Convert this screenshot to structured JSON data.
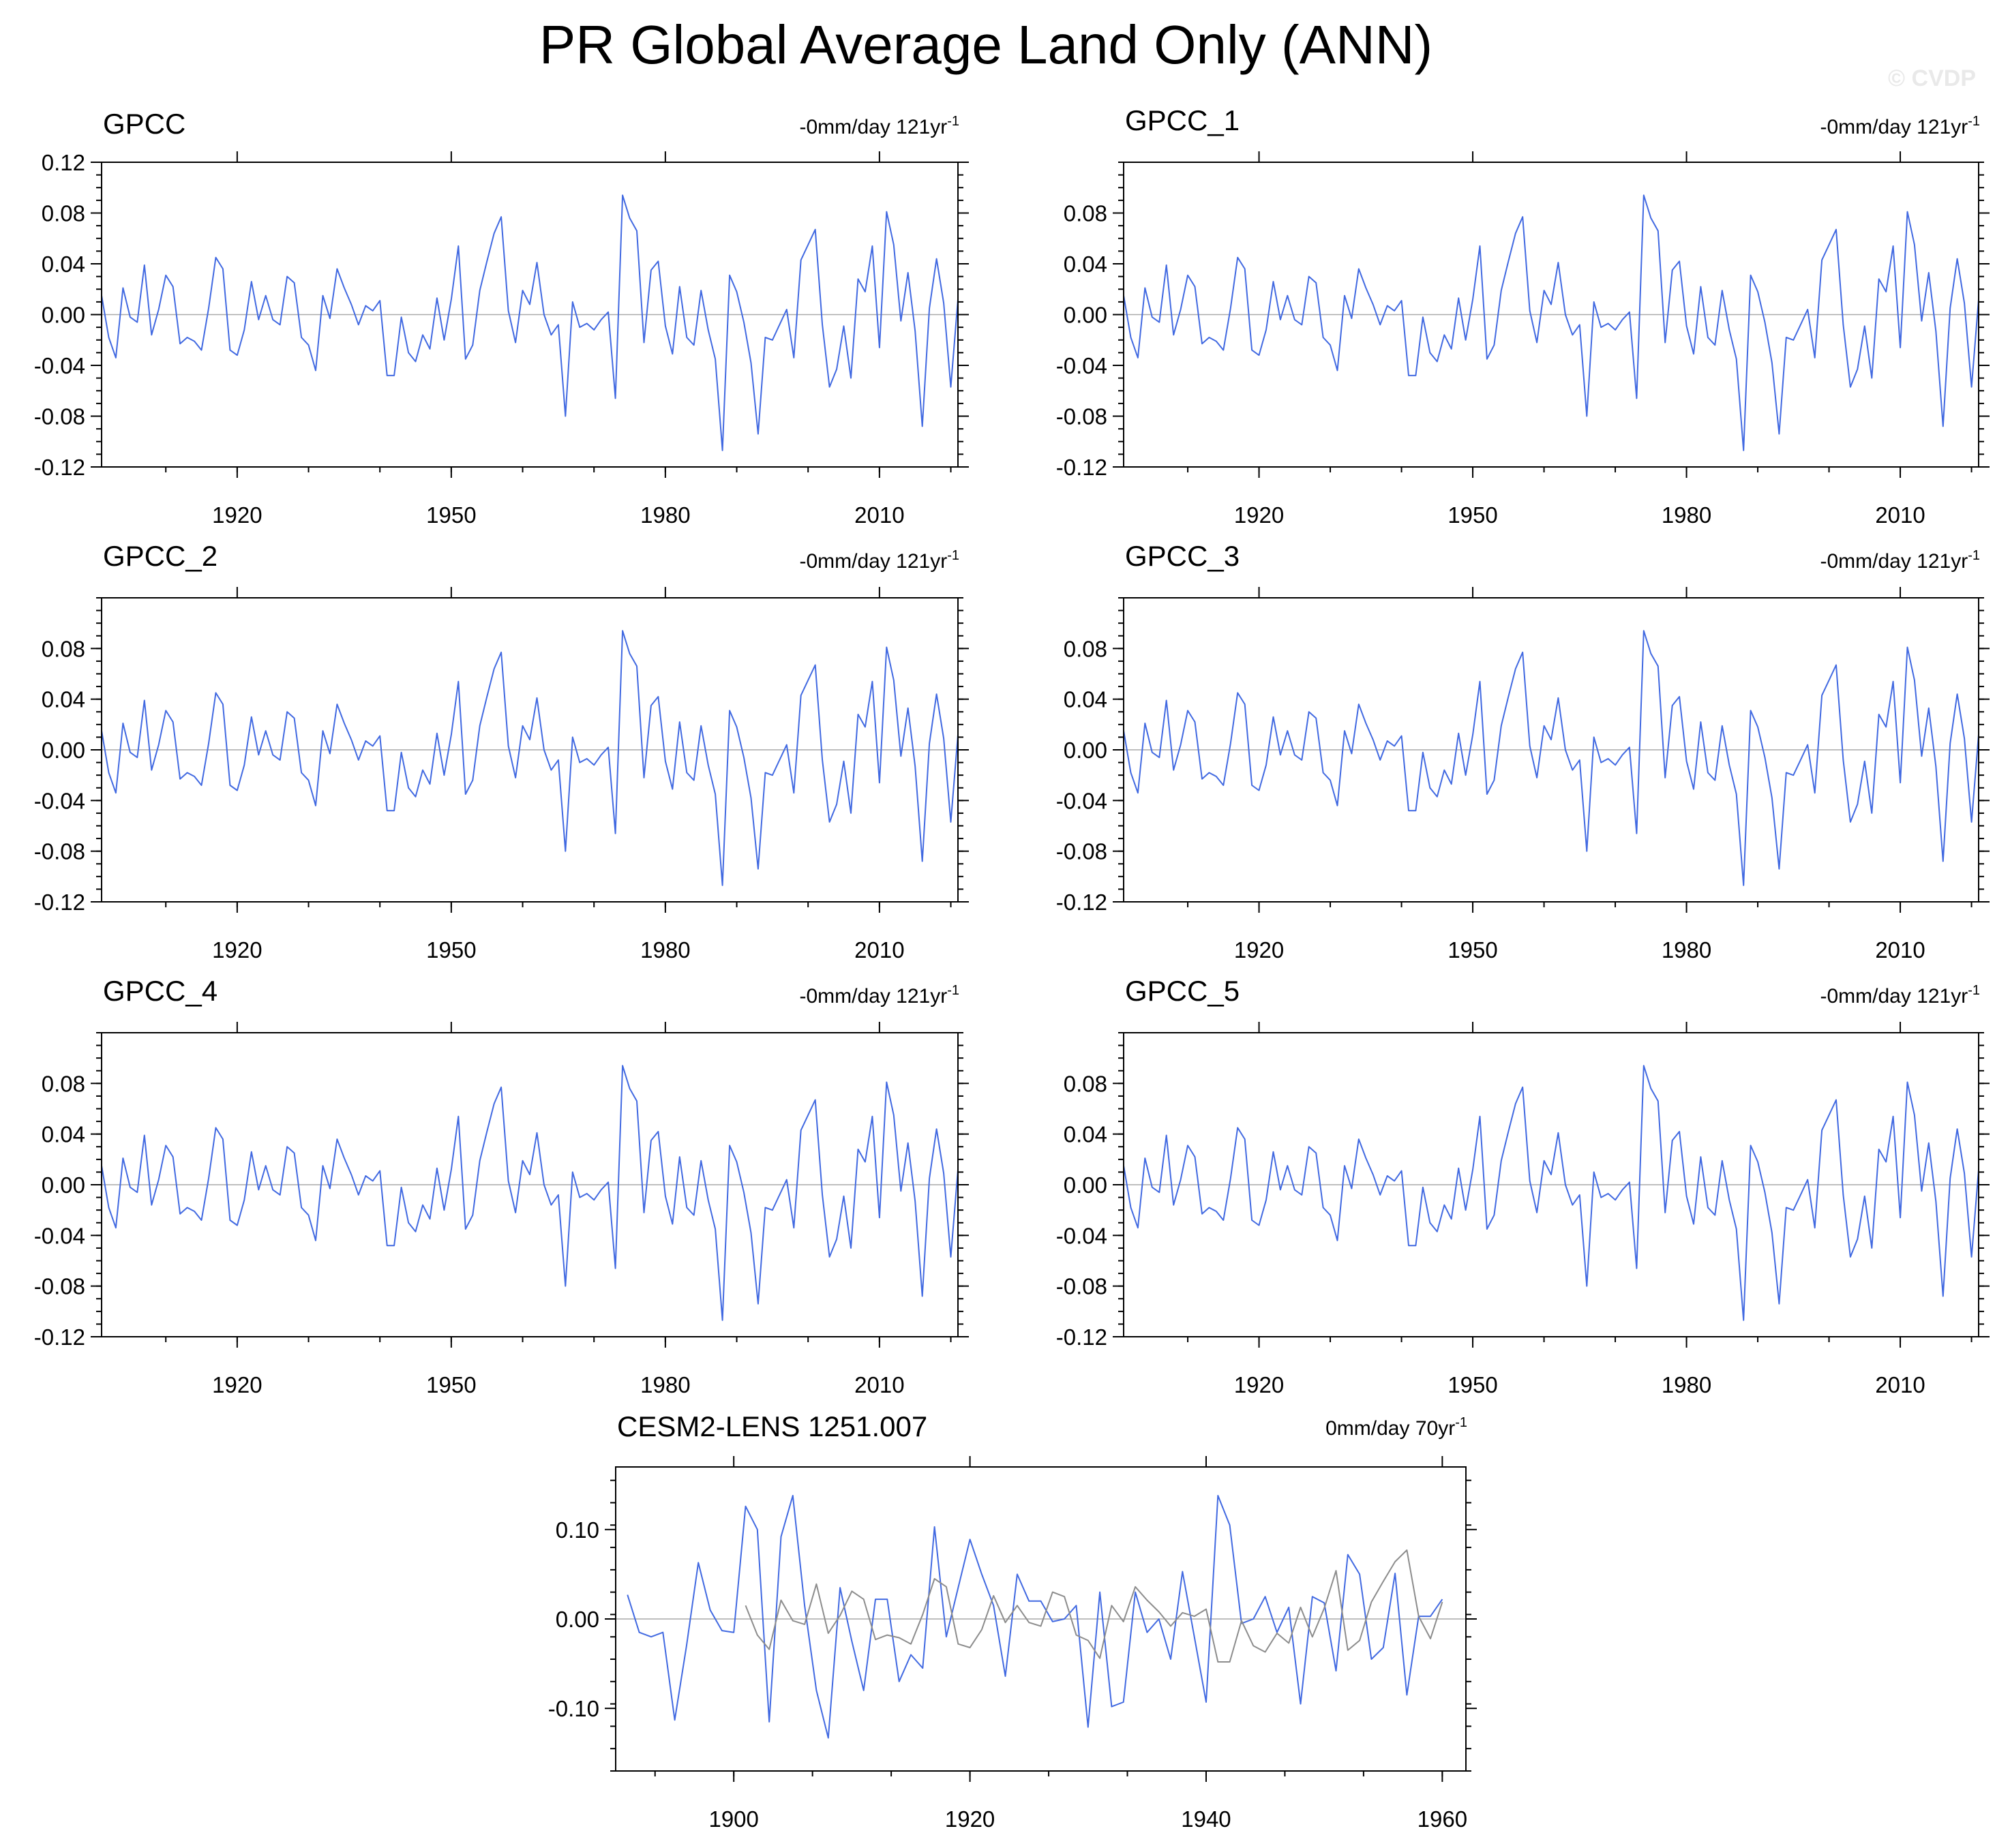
{
  "figure": {
    "title": "PR Global Average Land Only (ANN)",
    "watermark": "© CVDP"
  },
  "colors": {
    "primary": "#4169e1",
    "secondary": "#8c8c8c",
    "zero_line": "#a9a9a9"
  },
  "chart_data": [
    {
      "type": "line",
      "title": "GPCC",
      "trend": "-0mm/day 121yr",
      "trend_sup": "-1",
      "xlim": [
        1901,
        2021
      ],
      "ylim": [
        -0.12,
        0.12
      ],
      "x_ticks": [
        1920,
        1950,
        1980,
        2010
      ],
      "y_ticks": [
        -0.12,
        -0.08,
        -0.04,
        0.0,
        0.04,
        0.08,
        0.12
      ],
      "y_tick_labels": [
        "-0.12",
        "-0.08",
        "-0.04",
        "0.00",
        "0.04",
        "0.08",
        "0.12"
      ],
      "series_ref": "gpcc"
    },
    {
      "type": "line",
      "title": "GPCC_1",
      "trend": "-0mm/day 121yr",
      "trend_sup": "-1",
      "xlim": [
        1901,
        2021
      ],
      "ylim": [
        -0.12,
        0.12
      ],
      "x_ticks": [
        1920,
        1950,
        1980,
        2010
      ],
      "y_ticks": [
        -0.12,
        -0.08,
        -0.04,
        0.0,
        0.04,
        0.08
      ],
      "y_tick_labels": [
        "-0.12",
        "-0.08",
        "-0.04",
        "0.00",
        "0.04",
        "0.08"
      ],
      "series_ref": "gpcc"
    },
    {
      "type": "line",
      "title": "GPCC_2",
      "trend": "-0mm/day 121yr",
      "trend_sup": "-1",
      "xlim": [
        1901,
        2021
      ],
      "ylim": [
        -0.12,
        0.12
      ],
      "x_ticks": [
        1920,
        1950,
        1980,
        2010
      ],
      "y_ticks": [
        -0.12,
        -0.08,
        -0.04,
        0.0,
        0.04,
        0.08
      ],
      "y_tick_labels": [
        "-0.12",
        "-0.08",
        "-0.04",
        "0.00",
        "0.04",
        "0.08"
      ],
      "series_ref": "gpcc"
    },
    {
      "type": "line",
      "title": "GPCC_3",
      "trend": "-0mm/day 121yr",
      "trend_sup": "-1",
      "xlim": [
        1901,
        2021
      ],
      "ylim": [
        -0.12,
        0.12
      ],
      "x_ticks": [
        1920,
        1950,
        1980,
        2010
      ],
      "y_ticks": [
        -0.12,
        -0.08,
        -0.04,
        0.0,
        0.04,
        0.08
      ],
      "y_tick_labels": [
        "-0.12",
        "-0.08",
        "-0.04",
        "0.00",
        "0.04",
        "0.08"
      ],
      "series_ref": "gpcc"
    },
    {
      "type": "line",
      "title": "GPCC_4",
      "trend": "-0mm/day 121yr",
      "trend_sup": "-1",
      "xlim": [
        1901,
        2021
      ],
      "ylim": [
        -0.12,
        0.12
      ],
      "x_ticks": [
        1920,
        1950,
        1980,
        2010
      ],
      "y_ticks": [
        -0.12,
        -0.08,
        -0.04,
        0.0,
        0.04,
        0.08
      ],
      "y_tick_labels": [
        "-0.12",
        "-0.08",
        "-0.04",
        "0.00",
        "0.04",
        "0.08"
      ],
      "series_ref": "gpcc"
    },
    {
      "type": "line",
      "title": "GPCC_5",
      "trend": "-0mm/day 121yr",
      "trend_sup": "-1",
      "xlim": [
        1901,
        2021
      ],
      "ylim": [
        -0.12,
        0.12
      ],
      "x_ticks": [
        1920,
        1950,
        1980,
        2010
      ],
      "y_ticks": [
        -0.12,
        -0.08,
        -0.04,
        0.0,
        0.04,
        0.08
      ],
      "y_tick_labels": [
        "-0.12",
        "-0.08",
        "-0.04",
        "0.00",
        "0.04",
        "0.08"
      ],
      "series_ref": "gpcc"
    },
    {
      "type": "line",
      "title": "CESM2-LENS 1251.007",
      "trend": "0mm/day 70yr",
      "trend_sup": "-1",
      "xlim": [
        1890,
        1962
      ],
      "ylim": [
        -0.17,
        0.17
      ],
      "x_ticks": [
        1900,
        1920,
        1940,
        1960
      ],
      "y_ticks": [
        -0.1,
        0.0,
        0.1
      ],
      "y_tick_labels": [
        "-0.10",
        "0.00",
        "0.10"
      ],
      "series": [
        {
          "x_start": 1891,
          "values": [
            0.027,
            -0.015,
            -0.02,
            -0.015,
            -0.113,
            -0.03,
            0.063,
            0.01,
            -0.013,
            -0.015,
            0.126,
            0.1,
            -0.115,
            0.092,
            0.138,
            0.015,
            -0.08,
            -0.133,
            0.035,
            -0.025,
            -0.08,
            0.022,
            0.022,
            -0.07,
            -0.04,
            -0.055,
            0.103,
            -0.02,
            0.035,
            0.089,
            0.05,
            0.015,
            -0.064,
            0.05,
            0.02,
            0.02,
            -0.003,
            0.0,
            0.015,
            -0.121,
            0.03,
            -0.098,
            -0.093,
            0.03,
            -0.015,
            0.0,
            -0.045,
            0.053,
            -0.02,
            -0.093,
            0.138,
            0.105,
            -0.005,
            0.0,
            0.025,
            -0.015,
            0.013,
            -0.095,
            0.025,
            0.018,
            -0.058,
            0.072,
            0.05,
            -0.045,
            -0.032,
            0.051,
            -0.085,
            0.003,
            0.003,
            0.022
          ]
        },
        {
          "x_start": 1901,
          "ref": "gpcc",
          "count": 60
        }
      ]
    }
  ],
  "series_data": {
    "gpcc": {
      "x_start": 1901,
      "values": [
        0.015,
        -0.018,
        -0.034,
        0.021,
        -0.002,
        -0.006,
        0.039,
        -0.016,
        0.004,
        0.031,
        0.022,
        -0.023,
        -0.018,
        -0.021,
        -0.028,
        0.005,
        0.045,
        0.036,
        -0.028,
        -0.032,
        -0.012,
        0.026,
        -0.004,
        0.015,
        -0.004,
        -0.008,
        0.03,
        0.025,
        -0.018,
        -0.024,
        -0.044,
        0.015,
        -0.003,
        0.036,
        0.021,
        0.008,
        -0.008,
        0.007,
        0.003,
        0.011,
        -0.048,
        -0.048,
        -0.002,
        -0.03,
        -0.037,
        -0.016,
        -0.027,
        0.013,
        -0.02,
        0.012,
        0.054,
        -0.035,
        -0.024,
        0.019,
        0.042,
        0.064,
        0.077,
        0.003,
        -0.022,
        0.019,
        0.008,
        0.041,
        0.0,
        -0.016,
        -0.008,
        -0.08,
        0.01,
        -0.01,
        -0.007,
        -0.012,
        -0.004,
        0.002,
        -0.066,
        0.094,
        0.076,
        0.066,
        -0.022,
        0.035,
        0.042,
        -0.009,
        -0.031,
        0.022,
        -0.018,
        -0.024,
        0.019,
        -0.012,
        -0.035,
        -0.107,
        0.031,
        0.018,
        -0.006,
        -0.038,
        -0.094,
        -0.018,
        -0.02,
        -0.008,
        0.004,
        -0.034,
        0.043,
        0.055,
        0.067,
        -0.008,
        -0.057,
        -0.043,
        -0.009,
        -0.05,
        0.028,
        0.018,
        0.054,
        -0.026,
        0.081,
        0.055,
        -0.005,
        0.033,
        -0.013,
        -0.088,
        0.005,
        0.044,
        0.009,
        -0.057,
        0.012
      ]
    }
  }
}
